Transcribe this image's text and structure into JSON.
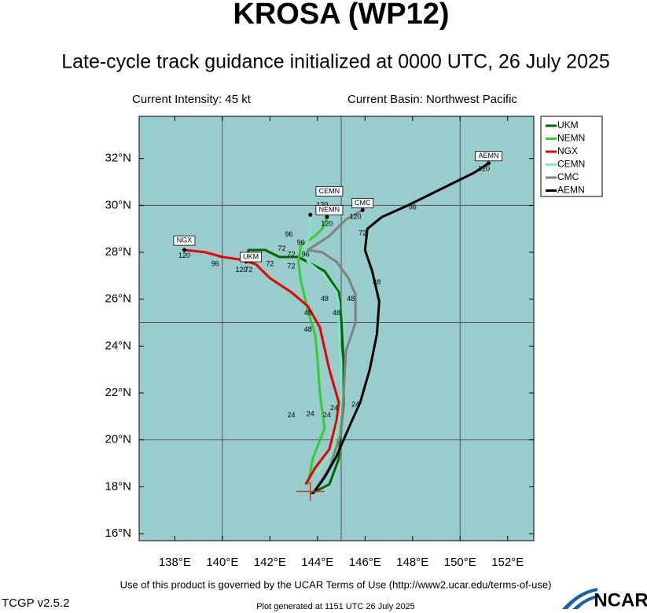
{
  "chart_data": {
    "type": "line",
    "title": "KROSA (WP12)",
    "subtitle": "Late-cycle track guidance initialized at 0000 UTC, 26 July 2025",
    "intensity": "Current Intensity: 45 kt",
    "basin": "Current Basin: Northwest Pacific",
    "terms": "Use of this product is governed by the UCAR Terms of Use (http://www2.ucar.edu/terms-of-use)",
    "version": "TCGP v2.5.2",
    "generated": "Plot generated at 1151 UTC  26 July 2025",
    "logo": "NCAR",
    "xlim": [
      136.5,
      153.1
    ],
    "ylim": [
      15.7,
      33.8
    ],
    "xticks": [
      {
        "value": 138,
        "label": "138°E"
      },
      {
        "value": 140,
        "label": "140°E"
      },
      {
        "value": 142,
        "label": "142°E"
      },
      {
        "value": 144,
        "label": "144°E"
      },
      {
        "value": 146,
        "label": "146°E"
      },
      {
        "value": 148,
        "label": "148°E"
      },
      {
        "value": 150,
        "label": "150°E"
      },
      {
        "value": 152,
        "label": "152°E"
      }
    ],
    "yticks": [
      {
        "value": 16,
        "label": "16°N"
      },
      {
        "value": 18,
        "label": "18°N"
      },
      {
        "value": 20,
        "label": "20°N"
      },
      {
        "value": 22,
        "label": "22°N"
      },
      {
        "value": 24,
        "label": "24°N"
      },
      {
        "value": 26,
        "label": "26°N"
      },
      {
        "value": 28,
        "label": "28°N"
      },
      {
        "value": 30,
        "label": "30°N"
      },
      {
        "value": 32,
        "label": "32°N"
      }
    ],
    "grid_x": [
      140,
      145,
      150
    ],
    "grid_y": [
      20,
      25,
      30
    ],
    "current_position": [
      143.7,
      17.8
    ],
    "series": [
      {
        "name": "UKM",
        "color": "#006400",
        "x": [
          143.7,
          144.5,
          144.9,
          145.0,
          145.1,
          145.1,
          145.0,
          144.9,
          144.3,
          143.2,
          142.4,
          141.8,
          141.1,
          141.0
        ],
        "values": [
          17.7,
          18.1,
          19.2,
          20.5,
          21.5,
          23.3,
          25.2,
          26.3,
          27.2,
          27.8,
          27.8,
          28.1,
          28.1,
          27.6
        ]
      },
      {
        "name": "NEMN",
        "color": "#33cc33",
        "x": [
          143.6,
          143.8,
          144.3,
          144.1,
          144.0,
          143.9,
          143.6,
          143.3,
          143.2,
          143.3,
          143.9,
          144.2,
          144.4
        ],
        "values": [
          18.1,
          19.2,
          20.5,
          22.0,
          23.5,
          24.5,
          25.5,
          26.8,
          27.6,
          28.3,
          28.7,
          29.0,
          29.5
        ]
      },
      {
        "name": "NGX",
        "color": "#e60000",
        "x": [
          143.5,
          143.9,
          144.5,
          144.8,
          144.9,
          144.5,
          144.1,
          143.6,
          142.9,
          142.0,
          141.4,
          140.7,
          140.0,
          139.3,
          138.4
        ],
        "values": [
          18.1,
          18.8,
          19.6,
          20.8,
          21.6,
          23.0,
          24.8,
          25.7,
          26.3,
          26.9,
          27.5,
          27.7,
          27.8,
          28.0,
          28.1
        ]
      },
      {
        "name": "CEMN",
        "color": "#80e8c0",
        "x": [
          143.9,
          144.6,
          145.0,
          145.0,
          144.9,
          144.9,
          144.8,
          144.3,
          143.6,
          143.5,
          143.7,
          143.7
        ],
        "values": [
          18.5,
          19.5,
          21.3,
          23.0,
          24.5,
          25.8,
          26.3,
          27.0,
          27.6,
          28.3,
          28.8,
          29.6
        ]
      },
      {
        "name": "CMC",
        "color": "#808080",
        "x": [
          143.8,
          144.5,
          145.0,
          145.1,
          145.2,
          145.6,
          145.6,
          145.3,
          144.8,
          144.2,
          143.6,
          144.5,
          145.2,
          145.9
        ],
        "values": [
          17.7,
          18.8,
          20.3,
          22.0,
          23.8,
          25.0,
          26.2,
          26.9,
          27.6,
          28.0,
          28.1,
          28.7,
          29.4,
          29.8
        ]
      },
      {
        "name": "AEMN",
        "color": "#000000",
        "x": [
          143.8,
          144.3,
          144.8,
          145.4,
          145.8,
          146.2,
          146.5,
          146.6,
          146.3,
          146.0,
          146.1,
          146.7,
          147.8,
          149.4,
          150.6,
          151.2
        ],
        "values": [
          17.7,
          18.4,
          19.3,
          20.7,
          21.6,
          23.0,
          24.5,
          25.9,
          27.2,
          28.1,
          29.0,
          29.5,
          30.0,
          30.8,
          31.4,
          31.8
        ]
      }
    ],
    "annotations": [
      {
        "text": "NGX",
        "x": 138.4,
        "y": 28.5,
        "box": true
      },
      {
        "text": "120",
        "x": 138.4,
        "y": 27.85
      },
      {
        "text": "96",
        "x": 139.7,
        "y": 27.5
      },
      {
        "text": "120",
        "x": 140.8,
        "y": 27.25
      },
      {
        "text": "72",
        "x": 141.1,
        "y": 27.25
      },
      {
        "text": "UKM",
        "x": 141.2,
        "y": 27.8,
        "box": true
      },
      {
        "text": "72",
        "x": 142.0,
        "y": 27.5
      },
      {
        "text": "72",
        "x": 142.9,
        "y": 27.4
      },
      {
        "text": "72",
        "x": 142.5,
        "y": 28.15
      },
      {
        "text": "72",
        "x": 142.9,
        "y": 27.9
      },
      {
        "text": "96",
        "x": 142.8,
        "y": 28.75
      },
      {
        "text": "96",
        "x": 143.3,
        "y": 28.4
      },
      {
        "text": "96",
        "x": 143.5,
        "y": 27.9
      },
      {
        "text": "CEMN",
        "x": 144.5,
        "y": 30.6,
        "box": true
      },
      {
        "text": "120",
        "x": 144.2,
        "y": 30.0
      },
      {
        "text": "NEMN",
        "x": 144.5,
        "y": 29.8,
        "box": true
      },
      {
        "text": "120",
        "x": 144.4,
        "y": 29.2
      },
      {
        "text": "CMC",
        "x": 145.9,
        "y": 30.1,
        "box": true
      },
      {
        "text": "120",
        "x": 145.6,
        "y": 29.5
      },
      {
        "text": "72",
        "x": 145.9,
        "y": 28.8
      },
      {
        "text": "96",
        "x": 148.0,
        "y": 29.9
      },
      {
        "text": "AEMN",
        "x": 151.2,
        "y": 32.1,
        "box": true
      },
      {
        "text": "120",
        "x": 151.0,
        "y": 31.55
      },
      {
        "text": "48",
        "x": 146.5,
        "y": 26.7
      },
      {
        "text": "48",
        "x": 145.4,
        "y": 26.0
      },
      {
        "text": "48",
        "x": 144.3,
        "y": 26.0
      },
      {
        "text": "48",
        "x": 144.8,
        "y": 25.4
      },
      {
        "text": "48",
        "x": 143.6,
        "y": 25.4
      },
      {
        "text": "48",
        "x": 143.6,
        "y": 24.7
      },
      {
        "text": "24",
        "x": 142.9,
        "y": 21.05
      },
      {
        "text": "24",
        "x": 143.7,
        "y": 21.1
      },
      {
        "text": "24",
        "x": 144.4,
        "y": 21.05
      },
      {
        "text": "24",
        "x": 144.7,
        "y": 21.35
      },
      {
        "text": "24",
        "x": 145.6,
        "y": 21.5
      }
    ]
  }
}
